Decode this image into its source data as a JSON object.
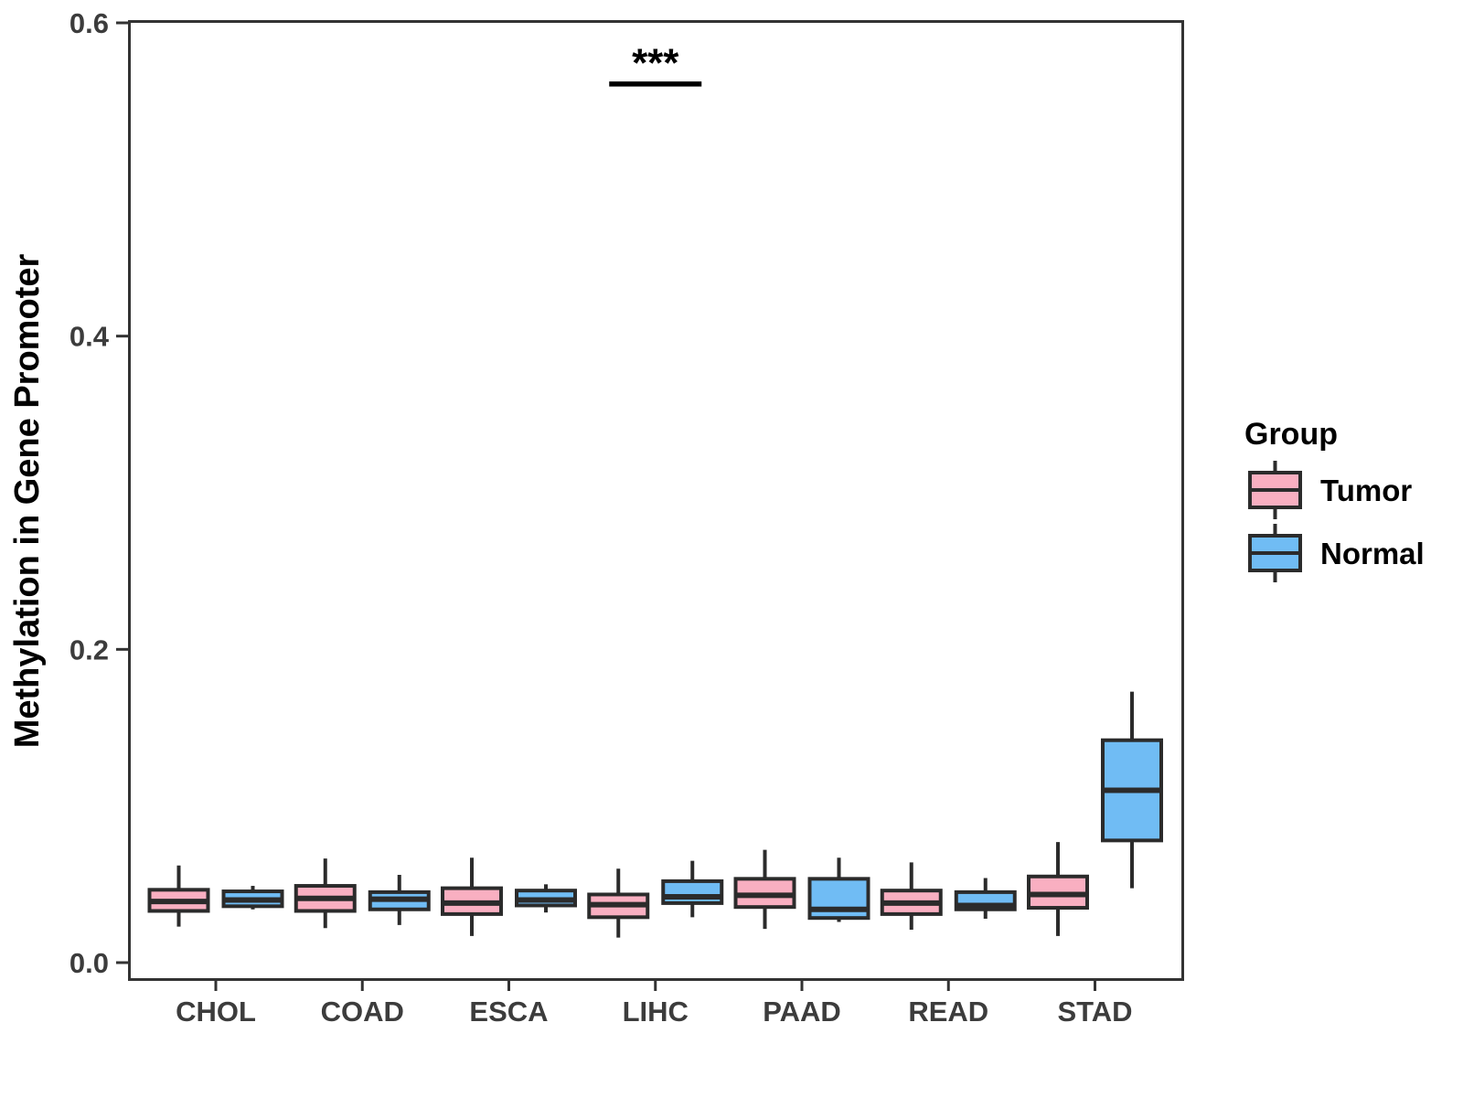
{
  "chart_data": {
    "type": "boxplot",
    "title": "",
    "xlabel": "",
    "ylabel": "Methylation in Gene Promoter",
    "categories": [
      "CHOL",
      "COAD",
      "ESCA",
      "LIHC",
      "PAAD",
      "READ",
      "STAD"
    ],
    "y_ticks": [
      0.0,
      0.2,
      0.4,
      0.6
    ],
    "y_tick_labels": [
      "0.0",
      "0.2",
      "0.4",
      "0.6"
    ],
    "ylim": [
      -0.01,
      0.6
    ],
    "grid": false,
    "legend": {
      "title": "Group",
      "position": "right"
    },
    "stats_format": [
      "whisker_low",
      "q1",
      "median",
      "q3",
      "whisker_high"
    ],
    "series": [
      {
        "name": "Tumor",
        "fill": "#F9AFC1",
        "stats": [
          [
            0.023,
            0.033,
            0.039,
            0.0465,
            0.062
          ],
          [
            0.022,
            0.033,
            0.041,
            0.049,
            0.0665
          ],
          [
            0.017,
            0.031,
            0.038,
            0.0475,
            0.067
          ],
          [
            0.016,
            0.029,
            0.037,
            0.0435,
            0.06
          ],
          [
            0.0215,
            0.0355,
            0.043,
            0.0535,
            0.072
          ],
          [
            0.021,
            0.031,
            0.038,
            0.046,
            0.064
          ],
          [
            0.017,
            0.035,
            0.0435,
            0.055,
            0.077
          ]
        ]
      },
      {
        "name": "Normal",
        "fill": "#70BCF4",
        "stats": [
          [
            0.034,
            0.036,
            0.04,
            0.0455,
            0.049
          ],
          [
            0.024,
            0.034,
            0.0405,
            0.045,
            0.056
          ],
          [
            0.032,
            0.0365,
            0.04,
            0.046,
            0.05
          ],
          [
            0.029,
            0.038,
            0.042,
            0.052,
            0.065
          ],
          [
            0.026,
            0.0285,
            0.034,
            0.0535,
            0.067
          ],
          [
            0.028,
            0.034,
            0.0365,
            0.045,
            0.054
          ],
          [
            0.0475,
            0.078,
            0.11,
            0.142,
            0.173
          ]
        ]
      }
    ],
    "annotation": {
      "text": "***",
      "category": "LIHC",
      "bar_value": 0.561,
      "text_value": 0.566
    }
  },
  "style": {
    "background": "#FFFFFF",
    "axis_color": "#333333",
    "tick_label_color": "#3C3C3C",
    "text_color": "#000000",
    "box_stroke": "#2B2B2B",
    "tumor_fill": "#F9AFC1",
    "normal_fill": "#70BCF4"
  }
}
